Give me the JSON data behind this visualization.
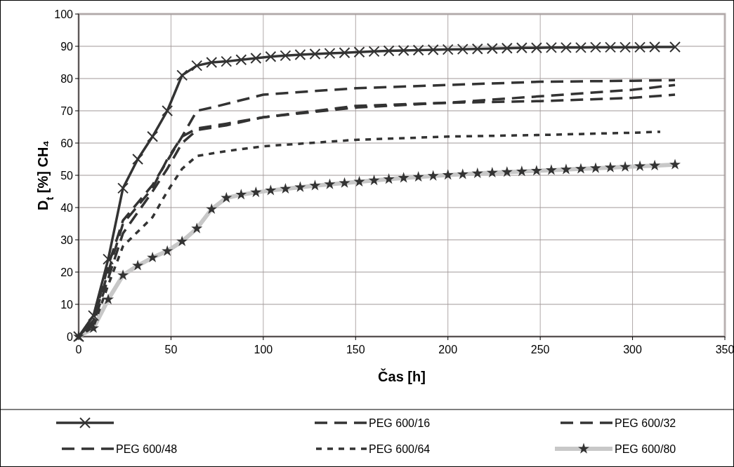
{
  "chart_data": {
    "type": "line",
    "xlabel": "Čas [h]",
    "ylabel": "D$_{t}$ [%] CH₄",
    "xlim": [
      0,
      350
    ],
    "xticks": [
      0,
      50,
      100,
      150,
      200,
      250,
      300,
      350
    ],
    "ylim": [
      0,
      100
    ],
    "yticks": [
      0,
      10,
      20,
      30,
      40,
      50,
      60,
      70,
      80,
      90,
      100
    ],
    "grid": true,
    "legend": "bottom",
    "series": [
      {
        "color": "#333333",
        "marker": "cross",
        "line_style": "solid",
        "x": [
          0,
          8,
          16,
          24,
          32,
          40,
          48,
          56,
          64,
          72,
          80,
          88,
          96,
          104,
          112,
          120,
          128,
          136,
          144,
          152,
          160,
          168,
          176,
          184,
          192,
          200,
          208,
          216,
          224,
          232,
          240,
          248,
          256,
          264,
          272,
          280,
          288,
          296,
          304,
          312,
          323
        ],
        "values": [
          0,
          6.5,
          24,
          46,
          55,
          62,
          70,
          81,
          84,
          85,
          85.3,
          85.8,
          86.3,
          86.8,
          87.1,
          87.4,
          87.6,
          87.8,
          88,
          88.2,
          88.4,
          88.6,
          88.7,
          88.8,
          88.9,
          89,
          89.1,
          89.2,
          89.3,
          89.4,
          89.5,
          89.5,
          89.6,
          89.6,
          89.6,
          89.7,
          89.7,
          89.7,
          89.7,
          89.8,
          89.8
        ]
      },
      {
        "name": "PEG 600/16",
        "color": "#333333",
        "marker": "none",
        "line_style": "dashed",
        "x": [
          0,
          8,
          16,
          24,
          40,
          56,
          64,
          72,
          100,
          150,
          200,
          250,
          300,
          323
        ],
        "values": [
          0,
          5,
          22,
          36,
          47,
          62,
          70,
          71,
          75,
          77,
          78,
          79,
          79.3,
          79.5
        ]
      },
      {
        "name": "PEG 600/32",
        "color": "#333333",
        "marker": "none",
        "line_style": "dashed",
        "x": [
          0,
          8,
          16,
          24,
          40,
          48,
          56,
          64,
          80,
          100,
          150,
          200,
          250,
          300,
          323
        ],
        "values": [
          0,
          5,
          20,
          35,
          46,
          55,
          62,
          64.5,
          66,
          68,
          71,
          72.5,
          74.5,
          76.5,
          78
        ]
      },
      {
        "name": "PEG 600/48",
        "color": "#333333",
        "marker": "none",
        "line_style": "dashed",
        "x": [
          0,
          8,
          16,
          24,
          40,
          48,
          56,
          64,
          80,
          100,
          150,
          200,
          250,
          300,
          323
        ],
        "values": [
          0,
          4,
          18,
          32,
          45,
          52,
          60,
          64,
          65.5,
          68,
          71.5,
          72.5,
          73,
          74,
          75
        ]
      },
      {
        "name": "PEG 600/64",
        "color": "#333333",
        "marker": "none",
        "line_style": "dotted",
        "x": [
          0,
          8,
          16,
          24,
          40,
          48,
          56,
          64,
          80,
          100,
          150,
          200,
          250,
          300,
          315
        ],
        "values": [
          0,
          3,
          16,
          28,
          37,
          45,
          52,
          56,
          57.5,
          59,
          61,
          62,
          62.5,
          63.2,
          63.5
        ]
      },
      {
        "name": "PEG 600/80",
        "color": "#c8c8c8",
        "marker": "star",
        "line_style": "solid",
        "x": [
          0,
          8,
          16,
          24,
          32,
          40,
          48,
          56,
          64,
          72,
          80,
          88,
          96,
          104,
          112,
          120,
          128,
          136,
          144,
          152,
          160,
          168,
          176,
          184,
          192,
          200,
          208,
          216,
          224,
          232,
          240,
          248,
          256,
          264,
          272,
          280,
          288,
          296,
          304,
          312,
          323
        ],
        "values": [
          0,
          2.6,
          11.5,
          19,
          22,
          24.5,
          26.5,
          29.5,
          33.5,
          39.5,
          43,
          44,
          44.7,
          45.3,
          45.8,
          46.3,
          46.8,
          47.2,
          47.6,
          48,
          48.4,
          48.8,
          49.2,
          49.5,
          49.8,
          50.1,
          50.3,
          50.6,
          50.8,
          51,
          51.2,
          51.4,
          51.6,
          51.8,
          52,
          52.2,
          52.4,
          52.6,
          52.8,
          53,
          53.3
        ]
      }
    ]
  }
}
